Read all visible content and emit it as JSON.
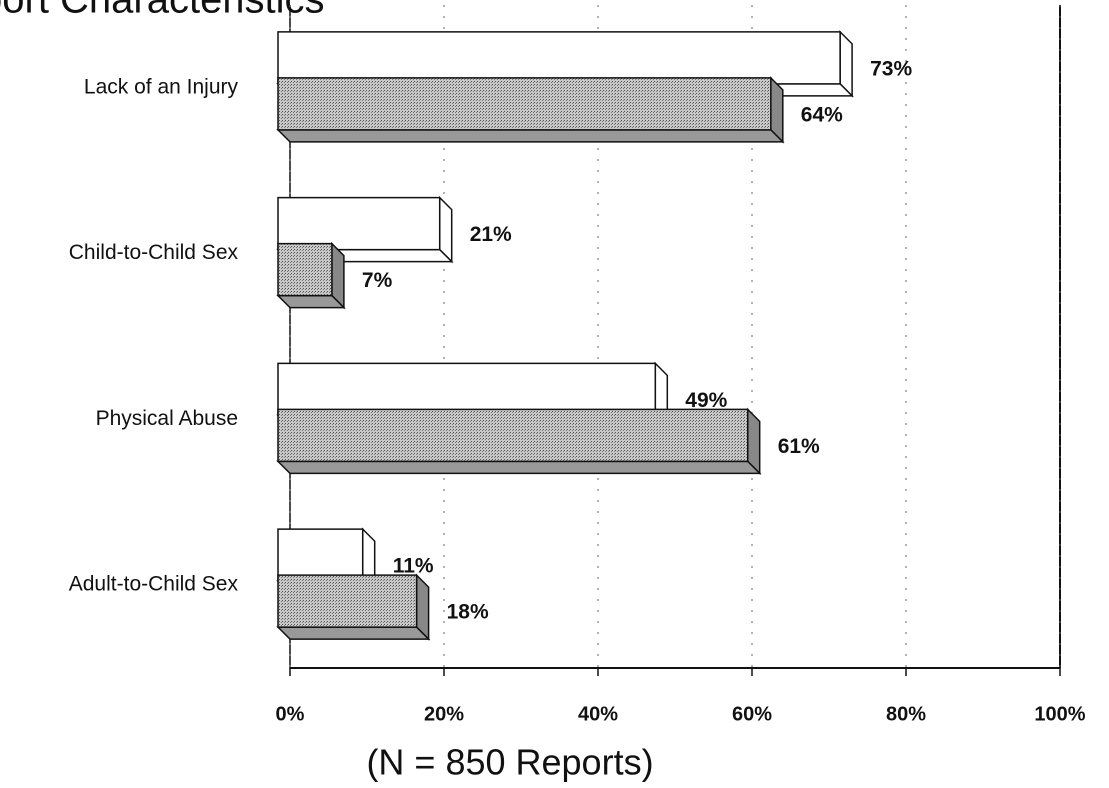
{
  "chart_data": {
    "type": "bar",
    "orientation": "horizontal",
    "title": "port Characteristics",
    "categories": [
      "Lack of an Injury",
      "Child-to-Child Sex",
      "Physical Abuse",
      "Adult-to-Child Sex"
    ],
    "series": [
      {
        "color": "#ffffff",
        "values": [
          73,
          21,
          49,
          11
        ],
        "value_labels": [
          "73%",
          "21%",
          "49%",
          "11%"
        ]
      },
      {
        "color": "#b4b4b4",
        "values": [
          64,
          7,
          61,
          18
        ],
        "value_labels": [
          "64%",
          "7%",
          "61%",
          "18%"
        ]
      }
    ],
    "xlim": [
      0,
      100
    ],
    "xticks": [
      {
        "value": 0,
        "label": "0%"
      },
      {
        "value": 20,
        "label": "20%"
      },
      {
        "value": 40,
        "label": "40%"
      },
      {
        "value": 60,
        "label": "60%"
      },
      {
        "value": 80,
        "label": "80%"
      },
      {
        "value": 100,
        "label": "100%"
      }
    ],
    "x_label": "(N = 850 Reports)",
    "grid": true
  }
}
